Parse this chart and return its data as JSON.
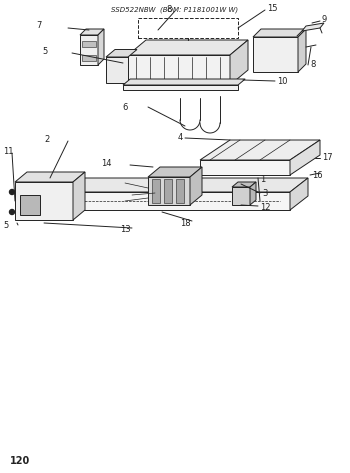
{
  "title": "SSD522NBW  (BOM: P1181001W W)",
  "page_number": "120",
  "bg": "#ffffff",
  "lc": "#222222",
  "figsize": [
    3.5,
    4.73
  ],
  "dpi": 100
}
